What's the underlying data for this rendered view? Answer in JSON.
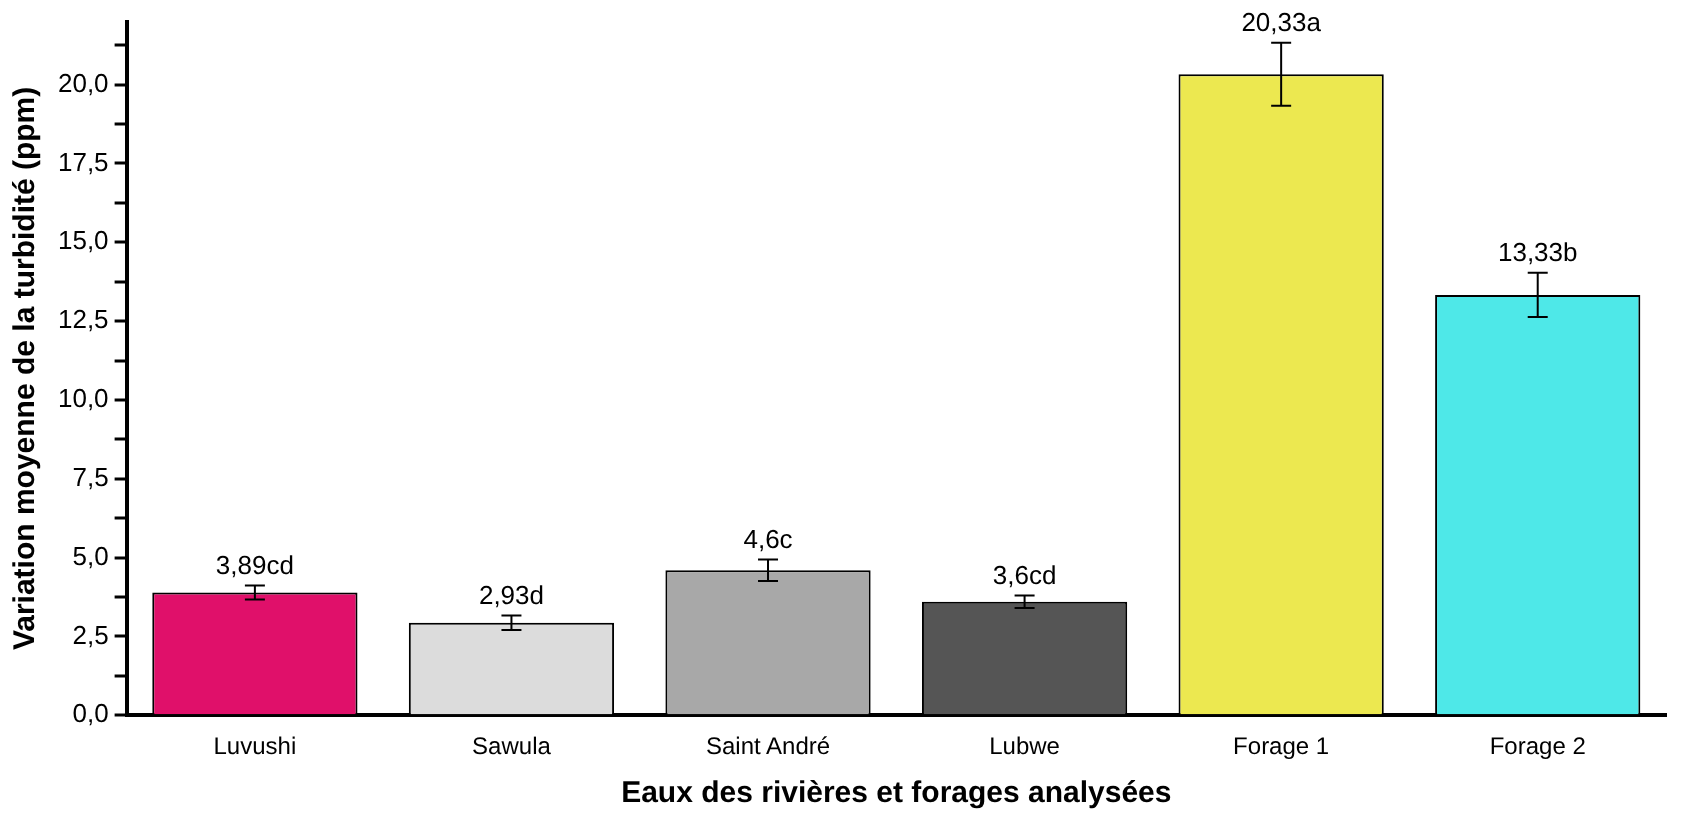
{
  "chart_data": {
    "type": "bar",
    "xlabel": "Eaux des rivières et forages analysées",
    "ylabel": "Variation moyenne de la turbidité (ppm)",
    "categories": [
      "Luvushi",
      "Sawula",
      "Saint André",
      "Lubwe",
      "Forage 1",
      "Forage 2"
    ],
    "values": [
      3.89,
      2.93,
      4.6,
      3.6,
      20.33,
      13.33
    ],
    "colors": [
      "#e0106a",
      "#dcdcdc",
      "#a8a8a8",
      "#555555",
      "#ece850",
      "#4ee8e8"
    ],
    "errors": [
      0.22,
      0.23,
      0.34,
      0.2,
      1.0,
      0.7
    ],
    "value_labels": [
      "3,89cd",
      "2,93d",
      "4,6c",
      "3,6cd",
      "20,33a",
      "13,33b"
    ],
    "ylim": [
      0,
      22
    ],
    "yticks": [
      {
        "value": 0,
        "label": "0,0"
      },
      {
        "value": 1.25,
        "label": null
      },
      {
        "value": 2.5,
        "label": "2,5"
      },
      {
        "value": 3.75,
        "label": null
      },
      {
        "value": 5,
        "label": "5,0"
      },
      {
        "value": 6.25,
        "label": null
      },
      {
        "value": 7.5,
        "label": "7,5"
      },
      {
        "value": 8.75,
        "label": null
      },
      {
        "value": 10,
        "label": "10,0"
      },
      {
        "value": 11.25,
        "label": null
      },
      {
        "value": 12.5,
        "label": "12,5"
      },
      {
        "value": 13.75,
        "label": null
      },
      {
        "value": 15,
        "label": "15,0"
      },
      {
        "value": 16.25,
        "label": null
      },
      {
        "value": 17.5,
        "label": "17,5"
      },
      {
        "value": 18.75,
        "label": null
      },
      {
        "value": 20,
        "label": "20,0"
      },
      {
        "value": 21.25,
        "label": null
      }
    ],
    "grid": false,
    "legend": false
  }
}
